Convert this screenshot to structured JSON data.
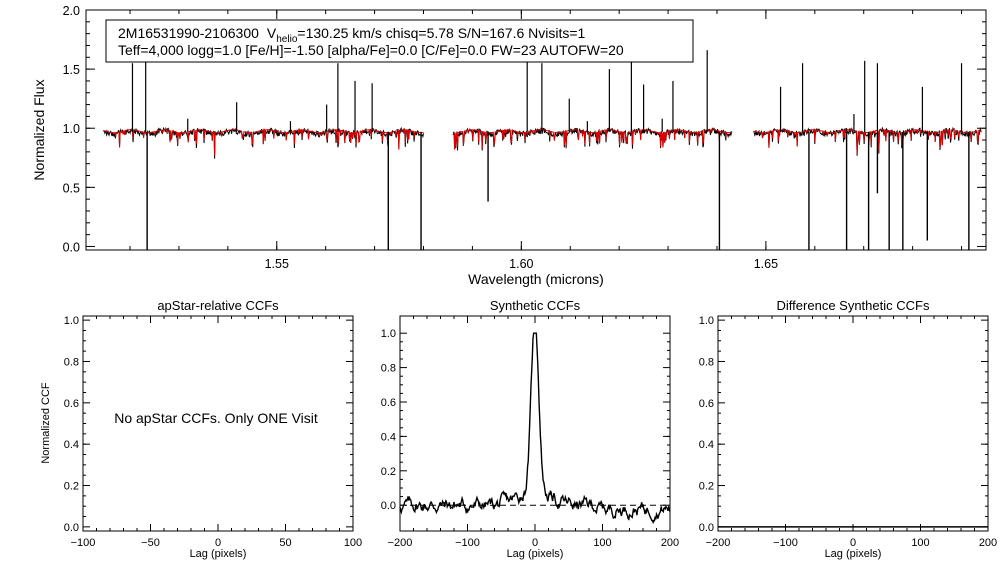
{
  "header": {
    "line1_star": "2M16531990-2106300",
    "line1_v": "V",
    "line1_v_sub": "helio",
    "line1_rest": "=130.25 km/s  chisq=5.78  S/N=167.6  Nvisits=1",
    "line2": "Teff=4,000 logg=1.0 [Fe/H]=-1.50 [alpha/Fe]=0.0 [C/Fe]=0.0 FW=23 AUTOFW=20"
  },
  "spectrum": {
    "xlabel": "Wavelength (microns)",
    "ylabel": "Normalized Flux",
    "xlim": [
      1.511,
      1.695
    ],
    "ylim": [
      -0.03,
      2.0
    ],
    "xticks": [
      1.55,
      1.6,
      1.65
    ],
    "xtick_labels": [
      "1.55",
      "1.60",
      "1.65"
    ],
    "yticks": [
      0.0,
      0.5,
      1.0,
      1.5,
      2.0
    ],
    "ytick_labels": [
      "0.0",
      "0.5",
      "1.0",
      "1.5",
      "2.0"
    ],
    "chips": [
      [
        1.5145,
        1.58
      ],
      [
        1.586,
        1.643
      ],
      [
        1.6475,
        1.694
      ]
    ],
    "observed_color": "#000000",
    "model_color": "#dd0000",
    "emission_spikes": [
      [
        1.5205,
        1.55
      ],
      [
        1.5232,
        1.85
      ],
      [
        1.5318,
        1.08
      ],
      [
        1.5418,
        1.22
      ],
      [
        1.5528,
        1.06
      ],
      [
        1.5602,
        1.2
      ],
      [
        1.5625,
        1.55
      ],
      [
        1.566,
        1.4
      ],
      [
        1.5695,
        1.38
      ],
      [
        1.6012,
        1.78
      ],
      [
        1.6042,
        1.55
      ],
      [
        1.6098,
        1.25
      ],
      [
        1.6135,
        1.06
      ],
      [
        1.618,
        1.5
      ],
      [
        1.6225,
        1.75
      ],
      [
        1.625,
        1.37
      ],
      [
        1.6288,
        1.08
      ],
      [
        1.631,
        1.4
      ],
      [
        1.638,
        1.66
      ],
      [
        1.653,
        1.35
      ],
      [
        1.6575,
        1.55
      ],
      [
        1.668,
        1.12
      ],
      [
        1.6702,
        1.57
      ],
      [
        1.6728,
        1.55
      ],
      [
        1.682,
        1.35
      ],
      [
        1.69,
        1.55
      ]
    ],
    "absorption_spikes": [
      [
        1.5235,
        -0.03
      ],
      [
        1.5728,
        -0.03
      ],
      [
        1.5795,
        -0.03
      ],
      [
        1.5932,
        0.38
      ],
      [
        1.6405,
        -0.03
      ],
      [
        1.6588,
        -0.03
      ],
      [
        1.6665,
        -0.03
      ],
      [
        1.671,
        -0.03
      ],
      [
        1.6728,
        0.45
      ],
      [
        1.6752,
        -0.03
      ],
      [
        1.678,
        -0.03
      ],
      [
        1.683,
        0.05
      ],
      [
        1.6915,
        -0.03
      ]
    ]
  },
  "ccf_ylabel": "Normalized CCF",
  "ccf_xlabel": "Lag (pixels)",
  "panel1": {
    "title": "apStar-relative CCFs",
    "note": "No apStar CCFs.  Only ONE Visit",
    "xlim": [
      -100,
      100
    ],
    "ylim": [
      -0.02,
      1.02
    ],
    "xticks": [
      -100,
      -50,
      0,
      50,
      100
    ],
    "xtick_labels": [
      "−100",
      "−50",
      "0",
      "50",
      "100"
    ],
    "yticks": [
      0.0,
      0.2,
      0.4,
      0.6,
      0.8,
      1.0
    ],
    "ytick_labels": [
      "0.0",
      "0.2",
      "0.4",
      "0.6",
      "0.8",
      "1.0"
    ]
  },
  "panel2": {
    "title": "Synthetic CCFs",
    "xlim": [
      -200,
      200
    ],
    "ylim": [
      -0.15,
      1.1
    ],
    "xticks": [
      -200,
      -100,
      0,
      100,
      200
    ],
    "xtick_labels": [
      "−200",
      "−100",
      "0",
      "100",
      "200"
    ],
    "yticks": [
      0.0,
      0.2,
      0.4,
      0.6,
      0.8,
      1.0
    ],
    "ytick_labels": [
      "0.0",
      "0.2",
      "0.4",
      "0.6",
      "0.8",
      "1.0"
    ],
    "peak_lag": 0,
    "peak_value": 1.0,
    "baseline": 0.0
  },
  "panel3": {
    "title": "Difference Synthetic CCFs",
    "xlim": [
      -200,
      200
    ],
    "ylim": [
      -0.02,
      1.02
    ],
    "xticks": [
      -200,
      -100,
      0,
      100,
      200
    ],
    "xtick_labels": [
      "−200",
      "−100",
      "0",
      "100",
      "200"
    ],
    "yticks": [
      0.0,
      0.2,
      0.4,
      0.6,
      0.8,
      1.0
    ],
    "ytick_labels": [
      "0.0",
      "0.2",
      "0.4",
      "0.6",
      "0.8",
      "1.0"
    ]
  },
  "chart_data": [
    {
      "type": "line",
      "x_range": [
        1.511,
        1.695
      ],
      "ylim": [
        -0.03,
        2.0
      ],
      "xlabel": "Wavelength (microns)",
      "ylabel": "Normalized Flux",
      "series": [
        {
          "name": "",
          "description_values": "continuum near 1.0 across three detector chips"
        },
        {
          "name": "",
          "description_values": "model continuum near 1.0"
        }
      ]
    },
    {
      "type": "line",
      "title": "apStar-relative CCFs",
      "xlabel": "Lag (pixels)",
      "ylabel": "Normalized CCF",
      "xlim": [
        -100,
        100
      ],
      "ylim": [
        0,
        1
      ],
      "series": []
    },
    {
      "type": "line",
      "title": "Synthetic CCFs",
      "xlabel": "Lag (pixels)",
      "xlim": [
        -200,
        200
      ],
      "ylim": [
        -0.15,
        1.1
      ],
      "series": [
        {
          "name": "",
          "x": [
            -200,
            -160,
            -120,
            -80,
            -50,
            -30,
            -15,
            -8,
            0,
            8,
            15,
            30,
            50,
            80,
            120,
            160,
            200
          ],
          "y": [
            -0.03,
            0.02,
            -0.01,
            0.03,
            0.04,
            0.1,
            0.18,
            0.45,
            1.0,
            0.45,
            0.14,
            0.05,
            0.02,
            0.0,
            -0.02,
            -0.03,
            -0.04
          ]
        }
      ]
    },
    {
      "type": "line",
      "title": "Difference Synthetic CCFs",
      "xlabel": "Lag (pixels)",
      "xlim": [
        -200,
        200
      ],
      "ylim": [
        0,
        1
      ],
      "series": []
    }
  ]
}
